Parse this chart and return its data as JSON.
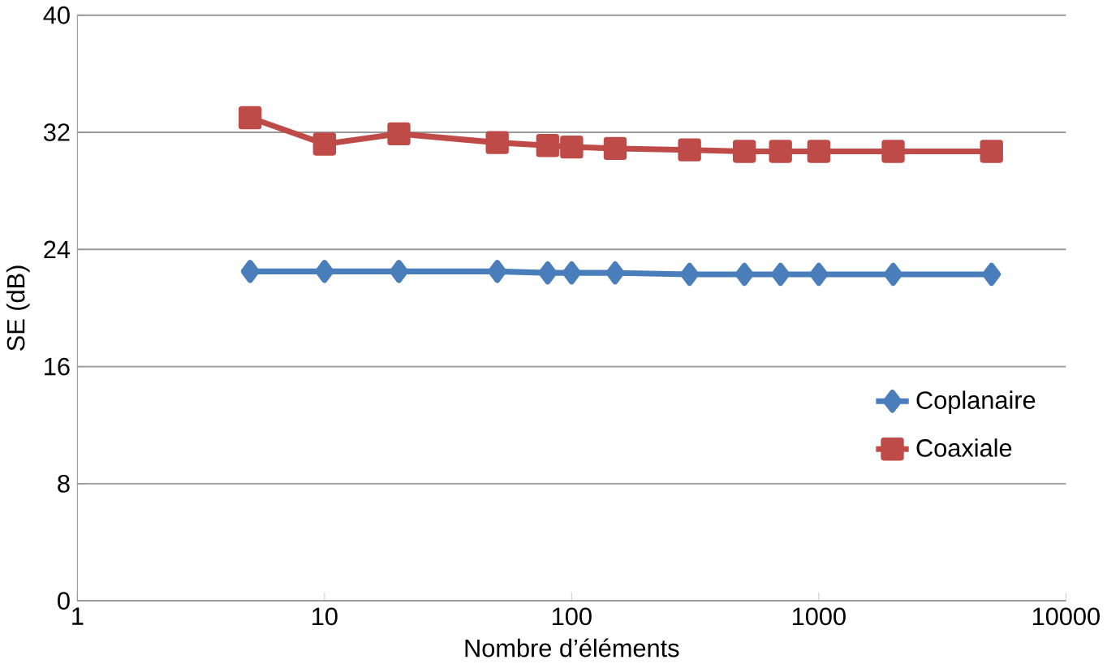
{
  "chart_data": {
    "type": "line",
    "xlabel": "Nombre d’éléments",
    "ylabel": "SE (dB)",
    "log": "x",
    "x": [
      5,
      10,
      20,
      50,
      80,
      100,
      150,
      300,
      500,
      700,
      1000,
      2000,
      5000
    ],
    "xlim": [
      1,
      10000
    ],
    "xticks": [
      1,
      10,
      100,
      1000,
      10000
    ],
    "ylim": [
      0,
      40
    ],
    "yticks": [
      0,
      8,
      16,
      24,
      32,
      40
    ],
    "grid": "y",
    "legend": "right",
    "series": [
      {
        "name": "Coplanaire",
        "color": "#4a7ebb",
        "marker": "diamond",
        "values": [
          22.5,
          22.5,
          22.5,
          22.5,
          22.4,
          22.4,
          22.4,
          22.3,
          22.3,
          22.3,
          22.3,
          22.3,
          22.3
        ]
      },
      {
        "name": "Coaxiale",
        "color": "#be4b48",
        "marker": "square",
        "values": [
          33.0,
          31.2,
          31.9,
          31.3,
          31.1,
          31.0,
          30.9,
          30.8,
          30.7,
          30.7,
          30.7,
          30.7,
          30.7
        ]
      }
    ]
  }
}
